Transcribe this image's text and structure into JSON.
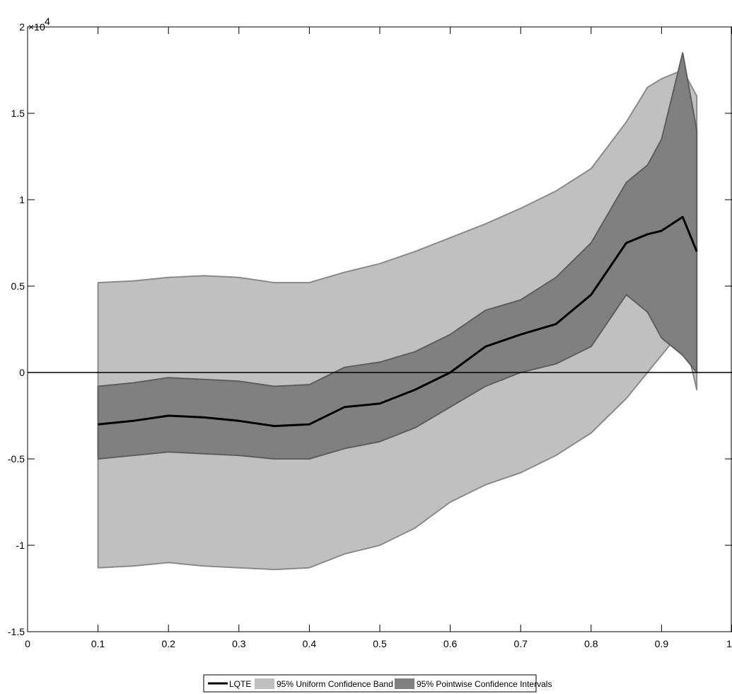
{
  "chart_data": {
    "type": "area",
    "x_ticks": [
      "0",
      "0.1",
      "0.2",
      "0.3",
      "0.4",
      "0.5",
      "0.6",
      "0.7",
      "0.8",
      "0.9",
      "1"
    ],
    "y_ticks": [
      "-1.5",
      "-1",
      "-0.5",
      "0",
      "0.5",
      "1",
      "1.5",
      "2"
    ],
    "y_multiplier": {
      "base": "×10",
      "exponent": "4"
    },
    "xlim": [
      0,
      1
    ],
    "ylim": [
      -15000,
      20000
    ],
    "x": [
      0.1,
      0.15,
      0.2,
      0.25,
      0.3,
      0.35,
      0.4,
      0.45,
      0.5,
      0.55,
      0.6,
      0.65,
      0.7,
      0.75,
      0.8,
      0.85,
      0.88,
      0.9,
      0.93,
      0.95
    ],
    "series": [
      {
        "name": "LQTE",
        "style": "line",
        "color": "#000000",
        "values": [
          -3000,
          -2800,
          -2500,
          -2600,
          -2800,
          -3100,
          -3000,
          -2000,
          -1800,
          -1000,
          0,
          1500,
          2200,
          2800,
          4500,
          7500,
          8000,
          8200,
          9000,
          7000
        ]
      },
      {
        "name": "95% Uniform Confidence Band",
        "style": "band",
        "color": "#c0c0c0",
        "lower": [
          -11300,
          -11200,
          -11000,
          -11200,
          -11300,
          -11400,
          -11300,
          -10500,
          -10000,
          -9000,
          -7500,
          -6500,
          -5800,
          -4800,
          -3500,
          -1500,
          0,
          1000,
          2500,
          -1000
        ],
        "upper": [
          5200,
          5300,
          5500,
          5600,
          5500,
          5200,
          5200,
          5800,
          6300,
          7000,
          7800,
          8600,
          9500,
          10500,
          11800,
          14500,
          16500,
          17000,
          17500,
          16000
        ]
      },
      {
        "name": "95% Pointwise Confidence Intervals",
        "style": "band",
        "color": "#808080",
        "lower": [
          -5000,
          -4800,
          -4600,
          -4700,
          -4800,
          -5000,
          -5000,
          -4400,
          -4000,
          -3200,
          -2000,
          -800,
          0,
          500,
          1500,
          4500,
          3500,
          2000,
          1000,
          0
        ],
        "upper": [
          -800,
          -600,
          -300,
          -400,
          -500,
          -800,
          -700,
          300,
          600,
          1200,
          2200,
          3600,
          4200,
          5500,
          7500,
          11000,
          12000,
          13500,
          18500,
          14000
        ]
      }
    ],
    "hline": 0,
    "grid": false,
    "legend": "bottom-center"
  }
}
